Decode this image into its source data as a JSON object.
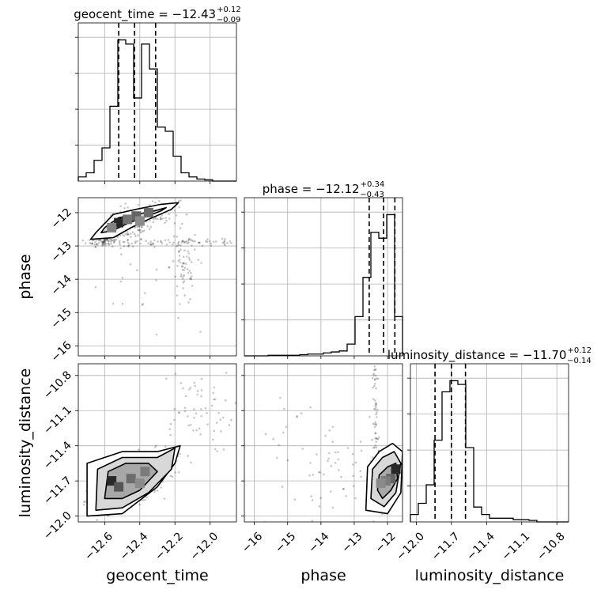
{
  "chart_data": {
    "type": "corner",
    "parameters": [
      "geocent_time",
      "phase",
      "luminosity_distance"
    ],
    "grid": true,
    "titles": [
      {
        "label": "geocent_time",
        "value": "−12.43",
        "plus": "+0.12",
        "minus": "−0.09"
      },
      {
        "label": "phase",
        "value": "−12.12",
        "plus": "+0.34",
        "minus": "−0.43"
      },
      {
        "label": "luminosity_distance",
        "value": "−11.70",
        "plus": "+0.12",
        "minus": "−0.14"
      }
    ],
    "axes": {
      "geocent_time": {
        "range": [
          -12.75,
          -11.85
        ],
        "ticks": [
          -12.6,
          -12.4,
          -12.2,
          -12.0
        ],
        "tick_labels": [
          "−12.6",
          "−12.4",
          "−12.2",
          "−12.0"
        ]
      },
      "phase": {
        "range": [
          -16.3,
          -11.55
        ],
        "ticks": [
          -16,
          -15,
          -14,
          -13,
          -12
        ],
        "tick_labels": [
          "−16",
          "−15",
          "−14",
          "−13",
          "−12"
        ]
      },
      "luminosity_distance": {
        "range": [
          -12.05,
          -10.7
        ],
        "ticks": [
          -12.0,
          -11.7,
          -11.4,
          -11.1,
          -10.8
        ],
        "tick_labels": [
          "−12.0",
          "−11.7",
          "−11.4",
          "−11.1",
          "−10.8"
        ]
      }
    },
    "histograms": [
      {
        "parameter": "geocent_time",
        "bin_edges": [
          -12.75,
          -12.705,
          -12.66,
          -12.615,
          -12.57,
          -12.525,
          -12.48,
          -12.435,
          -12.39,
          -12.345,
          -12.3,
          -12.255,
          -12.21,
          -12.165,
          -12.12,
          -12.075,
          -12.03,
          -11.985,
          -11.94,
          -11.895,
          -11.85
        ],
        "counts": [
          1,
          2,
          5,
          8,
          18,
          34,
          33,
          20,
          33,
          27,
          13,
          12,
          6,
          2,
          1,
          0.5,
          0.3,
          0,
          0,
          0
        ],
        "quantiles": [
          -12.52,
          -12.43,
          -12.31
        ]
      },
      {
        "parameter": "phase",
        "bin_edges": [
          -16.3,
          -16.0625,
          -15.825,
          -15.5875,
          -15.35,
          -15.1125,
          -14.875,
          -14.6375,
          -14.4,
          -14.1625,
          -13.925,
          -13.6875,
          -13.45,
          -13.2125,
          -12.975,
          -12.7375,
          -12.5,
          -12.2625,
          -12.025,
          -11.7875,
          -11.55
        ],
        "counts": [
          0,
          0,
          0,
          0.3,
          0.3,
          0.3,
          0.3,
          0.6,
          0.9,
          0.9,
          1.5,
          2,
          2.5,
          6,
          20,
          40,
          63,
          60,
          72,
          20
        ],
        "quantiles": [
          -12.55,
          -12.12,
          -11.78
        ]
      },
      {
        "parameter": "luminosity_distance",
        "bin_edges": [
          -12.05,
          -11.9825,
          -11.915,
          -11.8475,
          -11.78,
          -11.7125,
          -11.645,
          -11.5775,
          -11.51,
          -11.4425,
          -11.375,
          -11.3075,
          -11.24,
          -11.1725,
          -11.105,
          -11.0375,
          -10.97,
          -10.9025,
          -10.835,
          -10.7675,
          -10.7
        ],
        "counts": [
          2,
          5,
          10,
          22,
          35,
          38,
          37,
          20,
          4,
          2,
          1,
          1,
          1,
          0.6,
          0.6,
          0.4,
          0,
          0,
          0,
          0
        ],
        "quantiles": [
          -11.84,
          -11.7,
          -11.58
        ]
      }
    ],
    "pairs": [
      {
        "x": "geocent_time",
        "y": "phase",
        "samples": [
          {
            "cx": -12.45,
            "cy": -12.35,
            "sx": 0.05,
            "sy": 0.25,
            "n": 130
          },
          {
            "cx": -12.6,
            "cy": -12.85,
            "sx": 0.05,
            "sy": 0.08,
            "n": 70
          },
          {
            "cx": -12.3,
            "cy": -12.0,
            "sx": 0.06,
            "sy": 0.2,
            "n": 60
          },
          {
            "cx": -12.2,
            "cy": -12.9,
            "sx": 0.3,
            "sy": 0.05,
            "n": 90
          },
          {
            "cx": -12.15,
            "cy": -13.6,
            "sx": 0.04,
            "sy": 0.6,
            "n": 60
          },
          {
            "cx": -12.35,
            "cy": -14.5,
            "sx": 0.2,
            "sy": 0.7,
            "n": 25
          }
        ],
        "contours": [
          [
            [
              -12.6,
              -12.45
            ],
            [
              -12.52,
              -12.15
            ],
            [
              -12.42,
              -12.05
            ],
            [
              -12.32,
              -11.95
            ],
            [
              -12.25,
              -11.85
            ],
            [
              -12.28,
              -11.95
            ],
            [
              -12.38,
              -12.15
            ],
            [
              -12.46,
              -12.3
            ],
            [
              -12.56,
              -12.55
            ],
            [
              -12.62,
              -12.6
            ]
          ],
          [
            [
              -12.65,
              -12.6
            ],
            [
              -12.55,
              -12.05
            ],
            [
              -12.42,
              -11.9
            ],
            [
              -12.28,
              -11.75
            ],
            [
              -12.18,
              -11.7
            ],
            [
              -12.22,
              -11.9
            ],
            [
              -12.35,
              -12.2
            ],
            [
              -12.45,
              -12.45
            ],
            [
              -12.55,
              -12.75
            ],
            [
              -12.68,
              -12.8
            ]
          ]
        ],
        "density_cells": [
          [
            -12.52,
            -12.3,
            1.0
          ],
          [
            -12.42,
            -12.1,
            0.6
          ],
          [
            -12.35,
            -12.0,
            0.55
          ],
          [
            -12.47,
            -12.2,
            0.5
          ],
          [
            -12.4,
            -12.25,
            0.35
          ],
          [
            -12.56,
            -12.45,
            0.4
          ]
        ]
      },
      {
        "x": "geocent_time",
        "y": "luminosity_distance",
        "samples": [
          {
            "cx": -12.45,
            "cy": -11.7,
            "sx": 0.08,
            "sy": 0.09,
            "n": 220
          },
          {
            "cx": -12.3,
            "cy": -11.55,
            "sx": 0.08,
            "sy": 0.08,
            "n": 70
          },
          {
            "cx": -12.1,
            "cy": -11.1,
            "sx": 0.12,
            "sy": 0.18,
            "n": 60
          },
          {
            "cx": -12.62,
            "cy": -11.9,
            "sx": 0.05,
            "sy": 0.06,
            "n": 50
          }
        ],
        "contours": [
          [
            [
              -12.6,
              -11.85
            ],
            [
              -12.58,
              -11.62
            ],
            [
              -12.48,
              -11.55
            ],
            [
              -12.35,
              -11.55
            ],
            [
              -12.3,
              -11.62
            ],
            [
              -12.4,
              -11.78
            ],
            [
              -12.5,
              -11.85
            ]
          ],
          [
            [
              -12.65,
              -11.95
            ],
            [
              -12.64,
              -11.6
            ],
            [
              -12.5,
              -11.5
            ],
            [
              -12.3,
              -11.5
            ],
            [
              -12.2,
              -11.42
            ],
            [
              -12.22,
              -11.6
            ],
            [
              -12.35,
              -11.8
            ],
            [
              -12.5,
              -11.93
            ]
          ],
          [
            [
              -12.7,
              -12.0
            ],
            [
              -12.7,
              -11.55
            ],
            [
              -12.5,
              -11.45
            ],
            [
              -12.3,
              -11.45
            ],
            [
              -12.17,
              -11.4
            ],
            [
              -12.2,
              -11.55
            ],
            [
              -12.3,
              -11.75
            ],
            [
              -12.5,
              -11.98
            ]
          ]
        ],
        "density_cells": [
          [
            -12.56,
            -11.7,
            1.0
          ],
          [
            -12.52,
            -11.75,
            0.7
          ],
          [
            -12.45,
            -11.68,
            0.55
          ],
          [
            -12.37,
            -11.62,
            0.45
          ],
          [
            -12.4,
            -11.72,
            0.35
          ]
        ]
      },
      {
        "x": "phase",
        "y": "luminosity_distance",
        "samples": [
          {
            "cx": -12.05,
            "cy": -11.7,
            "sx": 0.25,
            "sy": 0.09,
            "n": 200
          },
          {
            "cx": -12.35,
            "cy": -11.2,
            "sx": 0.05,
            "sy": 0.3,
            "n": 60
          },
          {
            "cx": -13.5,
            "cy": -11.6,
            "sx": 0.6,
            "sy": 0.15,
            "n": 40
          },
          {
            "cx": -14.8,
            "cy": -11.4,
            "sx": 0.8,
            "sy": 0.3,
            "n": 20
          }
        ],
        "contours": [
          [
            [
              -12.3,
              -11.78
            ],
            [
              -12.25,
              -11.65
            ],
            [
              -12.0,
              -11.58
            ],
            [
              -11.75,
              -11.55
            ],
            [
              -11.7,
              -11.68
            ],
            [
              -11.9,
              -11.78
            ],
            [
              -12.15,
              -11.85
            ]
          ],
          [
            [
              -12.5,
              -11.85
            ],
            [
              -12.45,
              -11.6
            ],
            [
              -12.15,
              -11.5
            ],
            [
              -11.8,
              -11.45
            ],
            [
              -11.6,
              -11.55
            ],
            [
              -11.75,
              -11.8
            ],
            [
              -12.1,
              -11.92
            ]
          ],
          [
            [
              -12.65,
              -11.95
            ],
            [
              -12.6,
              -11.58
            ],
            [
              -12.25,
              -11.45
            ],
            [
              -11.85,
              -11.38
            ],
            [
              -11.55,
              -11.45
            ],
            [
              -11.6,
              -11.8
            ],
            [
              -12.0,
              -11.98
            ]
          ]
        ],
        "density_cells": [
          [
            -11.75,
            -11.6,
            1.0
          ],
          [
            -11.9,
            -11.68,
            0.6
          ],
          [
            -12.05,
            -11.7,
            0.45
          ],
          [
            -12.2,
            -11.72,
            0.35
          ]
        ]
      }
    ]
  }
}
